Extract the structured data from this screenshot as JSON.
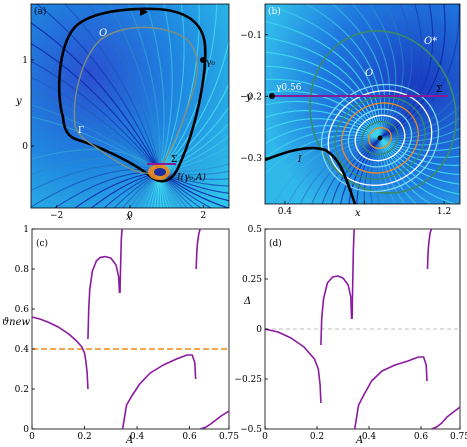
{
  "chart_data": [
    {
      "panel": "(a)",
      "type": "phase-portrait",
      "xlabel": "x",
      "ylabel": "y",
      "xlim": [
        -2.7,
        2.7
      ],
      "ylim": [
        -0.72,
        1.65
      ],
      "xticks": [
        -2,
        0,
        2
      ],
      "xtick_labels": [
        "−2",
        "0",
        "2"
      ],
      "yticks": [
        0,
        1
      ],
      "ytick_labels": [
        "0",
        "1"
      ],
      "annotations": {
        "O": "O",
        "gamma0": "γ₀",
        "Gamma": "Γ",
        "Sigma": "Σ",
        "I": "I(γ₀,A)"
      },
      "colors": {
        "background": "#1f86e0",
        "flow_light": "#3fd6ee",
        "flow_dark": "#0c23a8",
        "orbit": "#000000",
        "gray": "#7f8f7f",
        "orange": "#f08a1a",
        "magenta": "#8a1a9a"
      }
    },
    {
      "panel": "(b)",
      "type": "phase-portrait",
      "xlabel": "x",
      "ylabel": "y",
      "xlim": [
        0.3,
        1.28
      ],
      "ylim": [
        -0.375,
        -0.05
      ],
      "xticks": [
        0.4,
        0.8,
        1.2
      ],
      "xtick_labels": [
        "0.4",
        "",
        "1.2"
      ],
      "yticks": [
        -0.3,
        -0.2,
        -0.1
      ],
      "ytick_labels": [
        "−0.3",
        "−0.2",
        "−0.1"
      ],
      "annotations": {
        "O": "O",
        "Ostar": "O*",
        "gamma": "γ0.56",
        "Sigma": "Σ",
        "I": "I"
      },
      "colors": {
        "background": "#1f86e0",
        "green": "#3a8a6a",
        "orange": "#f08a1a",
        "magenta": "#8a1a9a"
      }
    },
    {
      "panel": "(c)",
      "type": "line",
      "xlabel": "A",
      "ylabel": "ϑnew",
      "xlim": [
        0,
        0.75
      ],
      "ylim": [
        0,
        1
      ],
      "xticks": [
        0,
        0.2,
        0.4,
        0.6,
        0.75
      ],
      "xtick_labels": [
        "0",
        "0.2",
        "0.4",
        "0.6",
        "0.75"
      ],
      "yticks": [
        0,
        0.2,
        0.4,
        0.6,
        0.8,
        1
      ],
      "ytick_labels": [
        "0",
        "0.2",
        "0.4",
        "0.6",
        "0.8",
        "1"
      ],
      "threshold": {
        "y": 0.4,
        "color": "#f08a1a",
        "style": "dashed"
      },
      "series_color": "#8b1aa0",
      "series": [
        {
          "x": [
            0,
            0.03,
            0.06,
            0.1,
            0.14,
            0.17,
            0.19,
            0.2,
            0.205,
            0.21,
            0.213
          ],
          "y": [
            0.56,
            0.55,
            0.535,
            0.51,
            0.475,
            0.44,
            0.41,
            0.38,
            0.34,
            0.28,
            0.2
          ]
        },
        {
          "x": [
            0.213,
            0.216,
            0.22,
            0.23,
            0.245,
            0.26,
            0.28,
            0.3,
            0.32,
            0.33,
            0.333
          ],
          "y": [
            0.45,
            0.6,
            0.7,
            0.79,
            0.84,
            0.858,
            0.862,
            0.855,
            0.82,
            0.76,
            0.68
          ]
        },
        {
          "x": [
            0.335,
            0.337,
            0.34,
            0.343
          ],
          "y": [
            0.68,
            0.8,
            0.95,
            1.0
          ]
        },
        {
          "x": [
            0.345,
            0.36,
            0.38,
            0.41,
            0.45,
            0.5,
            0.55,
            0.59,
            0.61,
            0.62,
            0.623
          ],
          "y": [
            0.0,
            0.12,
            0.165,
            0.225,
            0.28,
            0.32,
            0.35,
            0.37,
            0.37,
            0.33,
            0.25
          ]
        },
        {
          "x": [
            0.625,
            0.627,
            0.63,
            0.635,
            0.64
          ],
          "y": [
            0.8,
            0.87,
            0.93,
            0.975,
            1.0
          ]
        },
        {
          "x": [
            0.64,
            0.66,
            0.68,
            0.7,
            0.72,
            0.75
          ],
          "y": [
            0.0,
            0.008,
            0.025,
            0.045,
            0.065,
            0.09
          ]
        }
      ]
    },
    {
      "panel": "(d)",
      "type": "line",
      "xlabel": "A",
      "ylabel": "Δ",
      "xlim": [
        0,
        0.75
      ],
      "ylim": [
        -0.5,
        0.5
      ],
      "xticks": [
        0,
        0.2,
        0.4,
        0.6,
        0.75
      ],
      "xtick_labels": [
        "0",
        "0.2",
        "0.4",
        "0.6",
        "0.75"
      ],
      "yticks": [
        -0.5,
        -0.25,
        0,
        0.25,
        0.5
      ],
      "ytick_labels": [
        "−0.5",
        "−0.25",
        "0",
        "0.25",
        "0.5"
      ],
      "zero_line": {
        "y": 0,
        "color": "#aaaaaa",
        "style": "dashed"
      },
      "series_color": "#8b1aa0",
      "series": [
        {
          "x": [
            0,
            0.05,
            0.1,
            0.15,
            0.19,
            0.205,
            0.212,
            0.215
          ],
          "y": [
            0.0,
            -0.015,
            -0.045,
            -0.09,
            -0.15,
            -0.2,
            -0.28,
            -0.37
          ]
        },
        {
          "x": [
            0.215,
            0.218,
            0.225,
            0.24,
            0.26,
            0.28,
            0.3,
            0.32,
            0.33,
            0.333
          ],
          "y": [
            -0.08,
            0.05,
            0.15,
            0.23,
            0.26,
            0.265,
            0.255,
            0.22,
            0.16,
            0.05
          ]
        },
        {
          "x": [
            0.335,
            0.337,
            0.34,
            0.343
          ],
          "y": [
            0.05,
            0.2,
            0.4,
            0.5
          ]
        },
        {
          "x": [
            0.345,
            0.36,
            0.38,
            0.41,
            0.45,
            0.5,
            0.55,
            0.59,
            0.61,
            0.62,
            0.623
          ],
          "y": [
            -0.5,
            -0.38,
            -0.33,
            -0.26,
            -0.21,
            -0.18,
            -0.16,
            -0.14,
            -0.14,
            -0.18,
            -0.26
          ]
        },
        {
          "x": [
            0.625,
            0.627,
            0.63,
            0.635,
            0.64
          ],
          "y": [
            0.3,
            0.38,
            0.43,
            0.48,
            0.5
          ]
        },
        {
          "x": [
            0.64,
            0.66,
            0.68,
            0.7,
            0.72,
            0.75
          ],
          "y": [
            -0.5,
            -0.49,
            -0.47,
            -0.44,
            -0.42,
            -0.39
          ]
        }
      ]
    }
  ]
}
